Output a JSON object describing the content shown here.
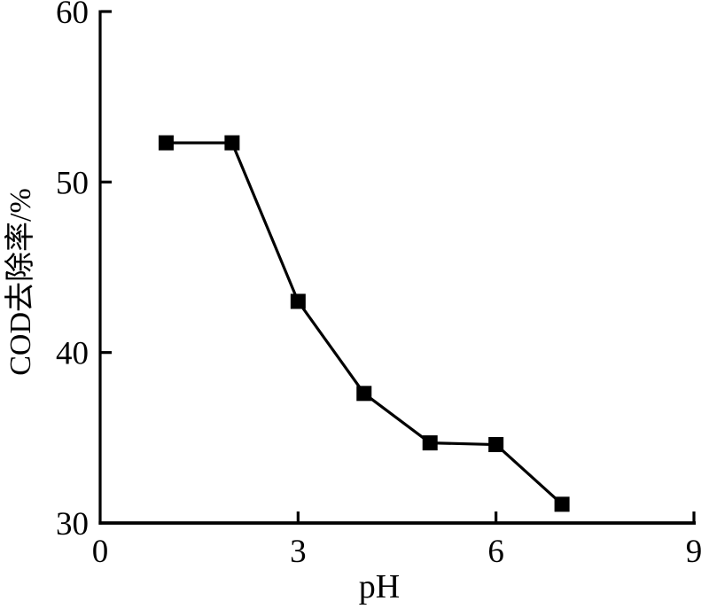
{
  "chart_data": {
    "type": "line",
    "title": "",
    "xlabel": "pH",
    "ylabel": "COD去除率/%",
    "x": [
      1,
      2,
      3,
      4,
      5,
      6,
      7
    ],
    "series": [
      {
        "name": "COD removal rate",
        "values": [
          52.3,
          52.3,
          43.0,
          37.6,
          34.7,
          34.6,
          31.1
        ]
      }
    ],
    "xlim": [
      0,
      9
    ],
    "ylim": [
      30,
      60
    ],
    "xticks": [
      0,
      3,
      6,
      9
    ],
    "yticks": [
      30,
      40,
      50,
      60
    ],
    "grid": false,
    "legend_position": "none",
    "marker": "filled-square",
    "line_color": "#000000",
    "marker_color": "#000000",
    "axis_color": "#000000",
    "background_color": "#ffffff"
  }
}
